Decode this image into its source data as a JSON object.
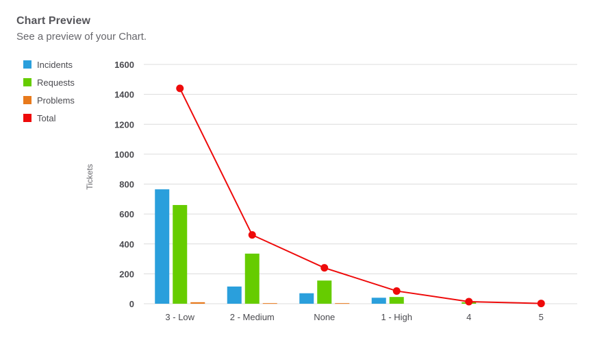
{
  "header": {
    "title": "Chart Preview",
    "subtitle": "See a preview of your Chart."
  },
  "legend": {
    "items": [
      {
        "label": "Incidents",
        "color": "#2a9fdc"
      },
      {
        "label": "Requests",
        "color": "#66cc00"
      },
      {
        "label": "Problems",
        "color": "#e87a1c"
      },
      {
        "label": "Total",
        "color": "#ee0a0a"
      }
    ]
  },
  "chart_data": {
    "type": "bar",
    "title": "Chart Preview",
    "subtitle": "See a preview of your Chart.",
    "xlabel": "",
    "ylabel": "Tickets",
    "categories": [
      "3 - Low",
      "2 - Medium",
      "None",
      "1 - High",
      "4",
      "5"
    ],
    "series": [
      {
        "name": "Incidents",
        "type": "bar",
        "color": "#2a9fdc",
        "values": [
          765,
          115,
          70,
          40,
          0,
          0
        ]
      },
      {
        "name": "Requests",
        "type": "bar",
        "color": "#66cc00",
        "values": [
          660,
          335,
          155,
          45,
          10,
          0
        ]
      },
      {
        "name": "Problems",
        "type": "bar",
        "color": "#e87a1c",
        "values": [
          10,
          4,
          4,
          0,
          0,
          0
        ]
      },
      {
        "name": "Total",
        "type": "line",
        "color": "#ee0a0a",
        "values": [
          1440,
          460,
          240,
          85,
          14,
          2
        ]
      }
    ],
    "yticks": [
      0,
      200,
      400,
      600,
      800,
      1000,
      1200,
      1400,
      1600
    ],
    "ylim": [
      0,
      1600
    ],
    "grid": true,
    "legend_position": "left"
  }
}
